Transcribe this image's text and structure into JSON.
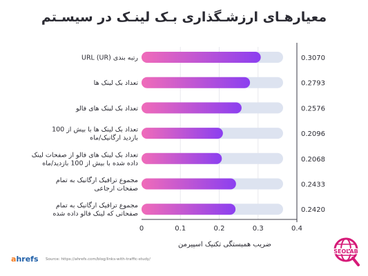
{
  "colors": {
    "bar_start": "#f06bb9",
    "bar_end": "#8b3ff0",
    "track": "#dde3f0",
    "axis": "#3a3a44",
    "brand_pink": "#d61a78"
  },
  "footer": {
    "brand": "ahrefs",
    "source": "Source: https://ahrefs.com/blog/links-with-traffic-study/"
  },
  "logo": {
    "text": "SEOLAB",
    "icon": "globe-icon"
  },
  "chart_data": {
    "type": "bar",
    "orientation": "horizontal",
    "title": "معیارهـای ارزشـگذاری بـک لینـک در سیسـتم",
    "xlabel": "ضریب همبستگی تکنیک اسپیرمن",
    "xlim": [
      0,
      0.4
    ],
    "xticks": [
      "0",
      "0.1",
      "0.2",
      "0.3",
      "0.4"
    ],
    "grid": true,
    "categories": [
      [
        "رتبه بندی URL (UR)"
      ],
      [
        "تعداد بک لینک ها"
      ],
      [
        "تعداد بک لینک های فالو"
      ],
      [
        "تعداد بک لینک ها با بیش از 100",
        "بازدید ارگانیک/ماه"
      ],
      [
        "تعداد بک لینک های فالو از صفحات لینک",
        "داده شده با بیش از 100 بازدید/ماه"
      ],
      [
        "مجموع ترافیک ارگانیک به تمام",
        "صفحات ارجاعی"
      ],
      [
        "مجموع ترافیک ارگانیک به تمام",
        "صفحاتی که لینک فالو داده شده"
      ]
    ],
    "values": [
      0.307,
      0.2793,
      0.2576,
      0.2096,
      0.2068,
      0.2433,
      0.242
    ],
    "value_labels": [
      "0.3070",
      "0.2793",
      "0.2576",
      "0.2096",
      "0.2068",
      "0.2433",
      "0.2420"
    ]
  }
}
